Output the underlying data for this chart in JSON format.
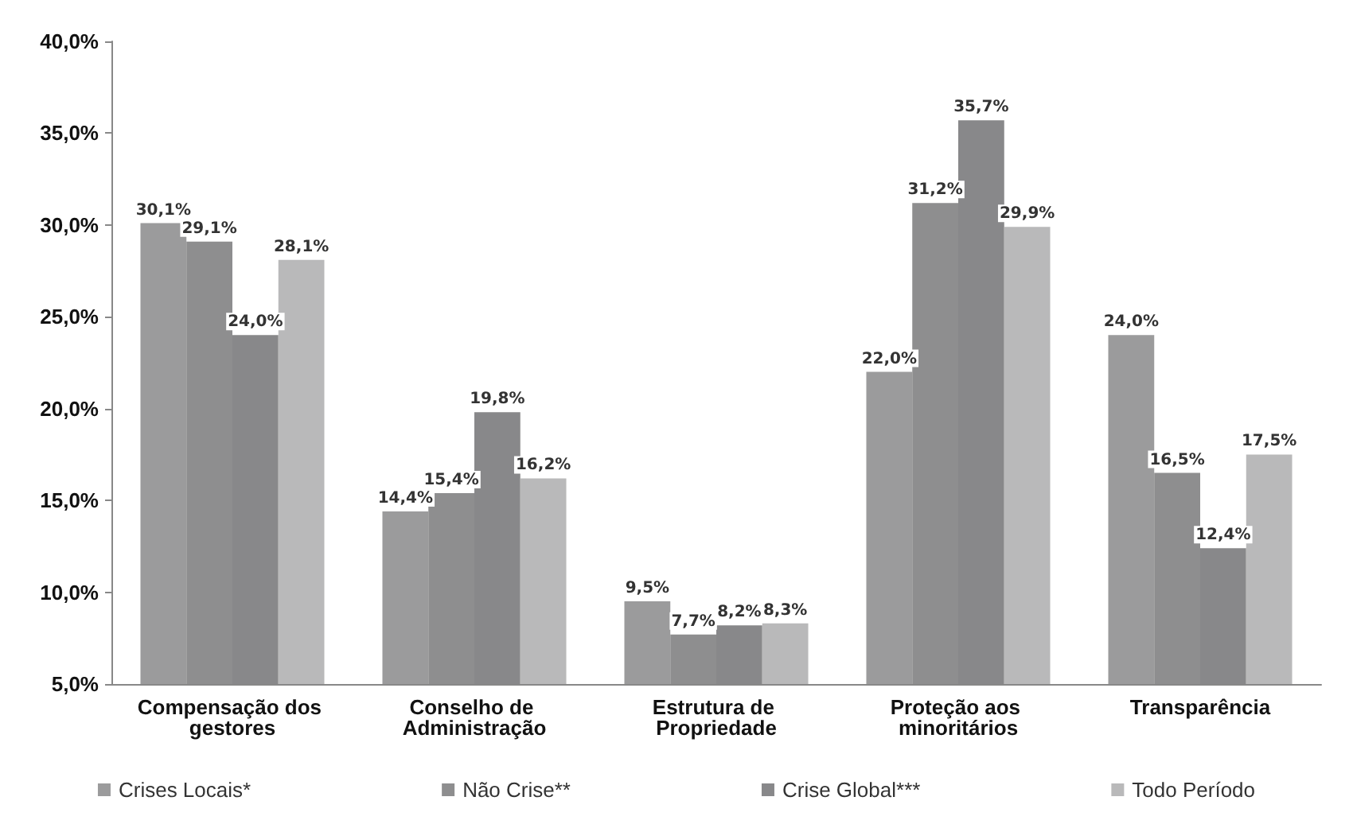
{
  "chart_data": {
    "type": "bar",
    "categories": [
      "Compensação dos gestores",
      "Conselho de Administração",
      "Estrutura de Propriedade",
      "Proteção aos minoritários",
      "Transparência"
    ],
    "series": [
      {
        "name": "Crises Locais*",
        "color": "#9b9b9c",
        "values": [
          30.1,
          14.4,
          9.5,
          22.0,
          24.0
        ],
        "value_labels": [
          "30,1%",
          "14,4%",
          "9,5%",
          "22,0%",
          "24,0%"
        ]
      },
      {
        "name": "Não Crise**",
        "color": "#8e8e8f",
        "values": [
          29.1,
          15.4,
          7.7,
          31.2,
          16.5
        ],
        "value_labels": [
          "29,1%",
          "15,4%",
          "7,7%",
          "31,2%",
          "16,5%"
        ]
      },
      {
        "name": "Crise Global***",
        "color": "#88888a",
        "values": [
          24.0,
          19.8,
          8.2,
          35.7,
          12.4
        ],
        "value_labels": [
          "24,0%",
          "19,8%",
          "8,2%",
          "35,7%",
          "12,4%"
        ]
      },
      {
        "name": "Todo Período",
        "color": "#b9b9ba",
        "values": [
          28.1,
          16.2,
          8.3,
          29.9,
          17.5
        ],
        "value_labels": [
          "28,1%",
          "16,2%",
          "8,3%",
          "29,9%",
          "17,5%"
        ]
      }
    ],
    "ylim": [
      5,
      40
    ],
    "yticks": [
      {
        "value": 5,
        "label": "5,0%"
      },
      {
        "value": 10,
        "label": "10,0%"
      },
      {
        "value": 15,
        "label": "15,0%"
      },
      {
        "value": 20,
        "label": "20,0%"
      },
      {
        "value": 25,
        "label": "25,0%"
      },
      {
        "value": 30,
        "label": "30,0%"
      },
      {
        "value": 35,
        "label": "35,0%"
      },
      {
        "value": 40,
        "label": "40,0%"
      }
    ],
    "grid": false,
    "legend": "bottom"
  }
}
